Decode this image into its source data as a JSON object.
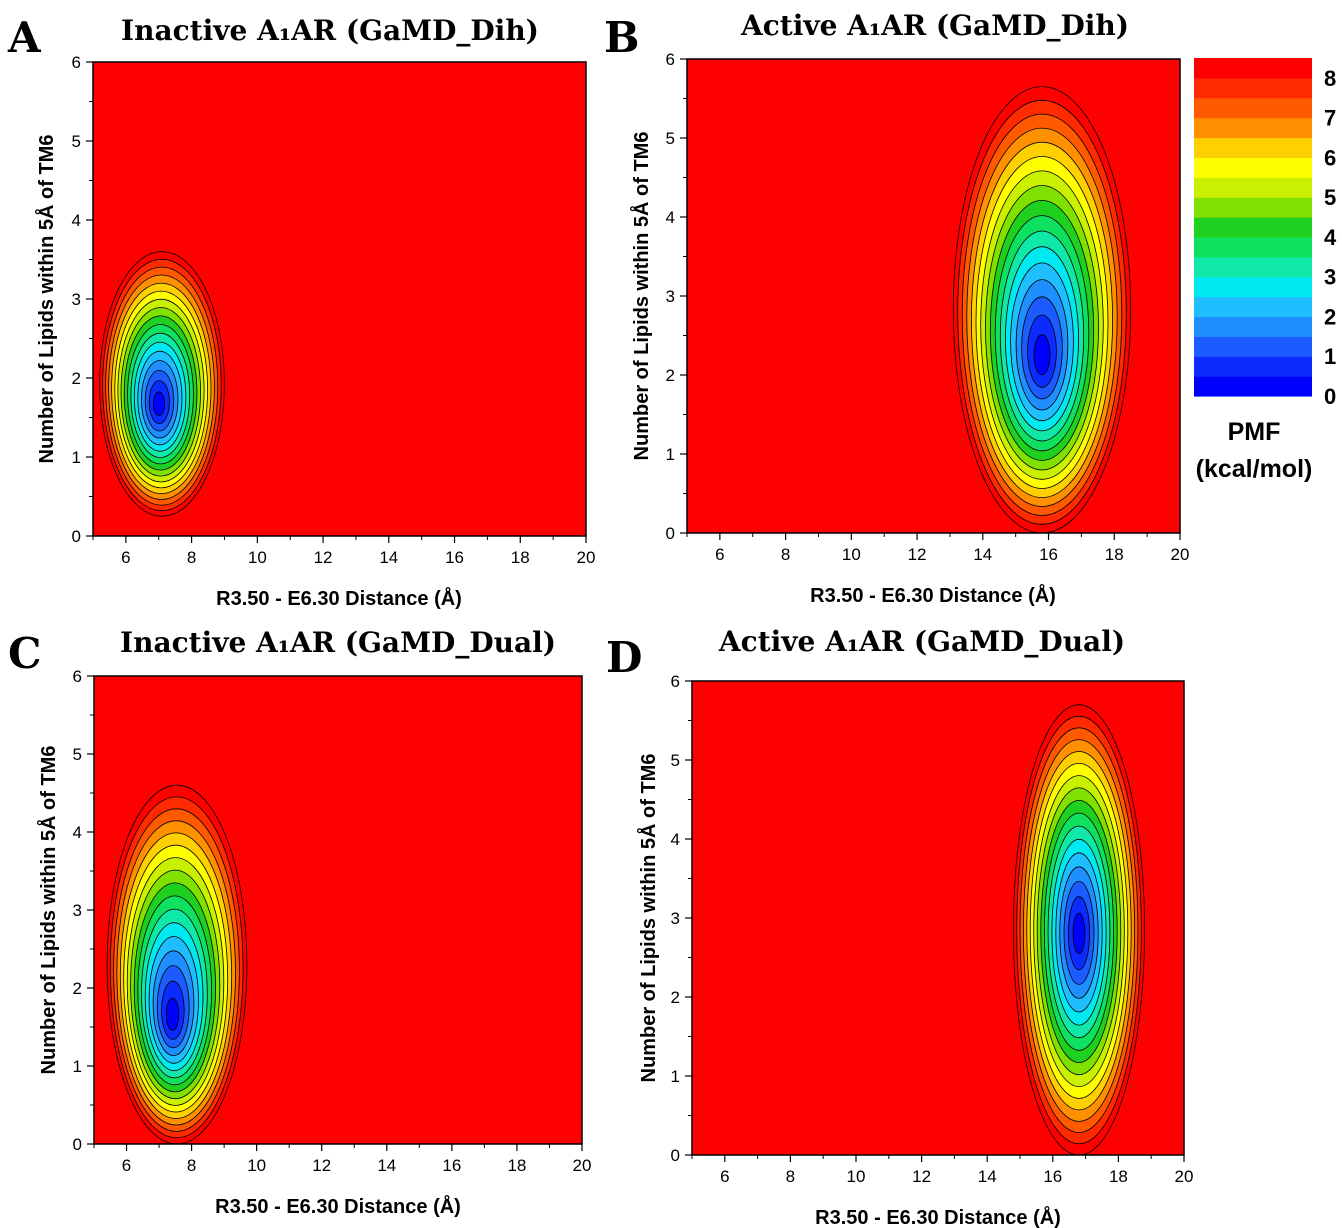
{
  "chart_data": [
    {
      "type": "heatmap",
      "panel_label": "A",
      "title": "Inactive A₁AR (GaMD_Dih)",
      "xlabel": "R3.50 - E6.30 Distance (Å)",
      "ylabel": "Number of Lipids within 5Å of TM6",
      "xlim": [
        5,
        20
      ],
      "ylim": [
        0,
        6
      ],
      "xticks": [
        6,
        8,
        10,
        12,
        14,
        16,
        18,
        20
      ],
      "yticks": [
        0,
        1,
        2,
        3,
        4,
        5,
        6
      ],
      "basin": {
        "center_x": 7.0,
        "center_y": 1.65,
        "x_range": [
          5.2,
          9.0
        ],
        "y_range": [
          0.25,
          3.6
        ],
        "min_pmf": 0
      }
    },
    {
      "type": "heatmap",
      "panel_label": "B",
      "title": "Active A₁AR (GaMD_Dih)",
      "xlabel": "R3.50 - E6.30 Distance (Å)",
      "ylabel": "Number of Lipids within 5Å of TM6",
      "xlim": [
        5,
        20
      ],
      "ylim": [
        0,
        6
      ],
      "xticks": [
        6,
        8,
        10,
        12,
        14,
        16,
        18,
        20
      ],
      "yticks": [
        0,
        1,
        2,
        3,
        4,
        5,
        6
      ],
      "basin": {
        "center_x": 15.8,
        "center_y": 2.2,
        "x_range": [
          13.1,
          18.5
        ],
        "y_range": [
          0.0,
          5.65
        ],
        "min_pmf": 0
      }
    },
    {
      "type": "heatmap",
      "panel_label": "C",
      "title": "Inactive A₁AR (GaMD_Dual)",
      "xlabel": "R3.50 - E6.30 Distance (Å)",
      "ylabel": "Number of Lipids within 5Å of TM6",
      "xlim": [
        5,
        20
      ],
      "ylim": [
        0,
        6
      ],
      "xticks": [
        6,
        8,
        10,
        12,
        14,
        16,
        18,
        20
      ],
      "yticks": [
        0,
        1,
        2,
        3,
        4,
        5,
        6
      ],
      "basin": {
        "center_x": 7.4,
        "center_y": 1.6,
        "x_range": [
          5.4,
          9.7
        ],
        "y_range": [
          0.0,
          4.6
        ],
        "min_pmf": 0
      }
    },
    {
      "type": "heatmap",
      "panel_label": "D",
      "title": "Active A₁AR (GaMD_Dual)",
      "xlabel": "R3.50 - E6.30 Distance (Å)",
      "ylabel": "Number of Lipids within 5Å of TM6",
      "xlim": [
        5,
        20
      ],
      "ylim": [
        0,
        6
      ],
      "xticks": [
        6,
        8,
        10,
        12,
        14,
        16,
        18,
        20
      ],
      "yticks": [
        0,
        1,
        2,
        3,
        4,
        5,
        6
      ],
      "basin": {
        "center_x": 16.8,
        "center_y": 2.8,
        "x_range": [
          14.8,
          18.8
        ],
        "y_range": [
          0.0,
          5.7
        ],
        "min_pmf": 0
      }
    }
  ],
  "colorbar": {
    "title_line1": "PMF",
    "title_line2": "(kcal/mol)",
    "tick_labels": [
      "8",
      "7",
      "6",
      "5",
      "4",
      "3",
      "2",
      "1",
      "0"
    ],
    "range": [
      0,
      8.5
    ],
    "colors": [
      "#0000ff",
      "#0b2bff",
      "#1c5cff",
      "#1f8fff",
      "#1fbfff",
      "#00e8f0",
      "#10e8a8",
      "#10e060",
      "#20d020",
      "#80e000",
      "#c8f000",
      "#ffff00",
      "#ffd000",
      "#ff9000",
      "#ff5a00",
      "#ff2a00",
      "#ff0000"
    ]
  },
  "background_color": "#ff0000"
}
